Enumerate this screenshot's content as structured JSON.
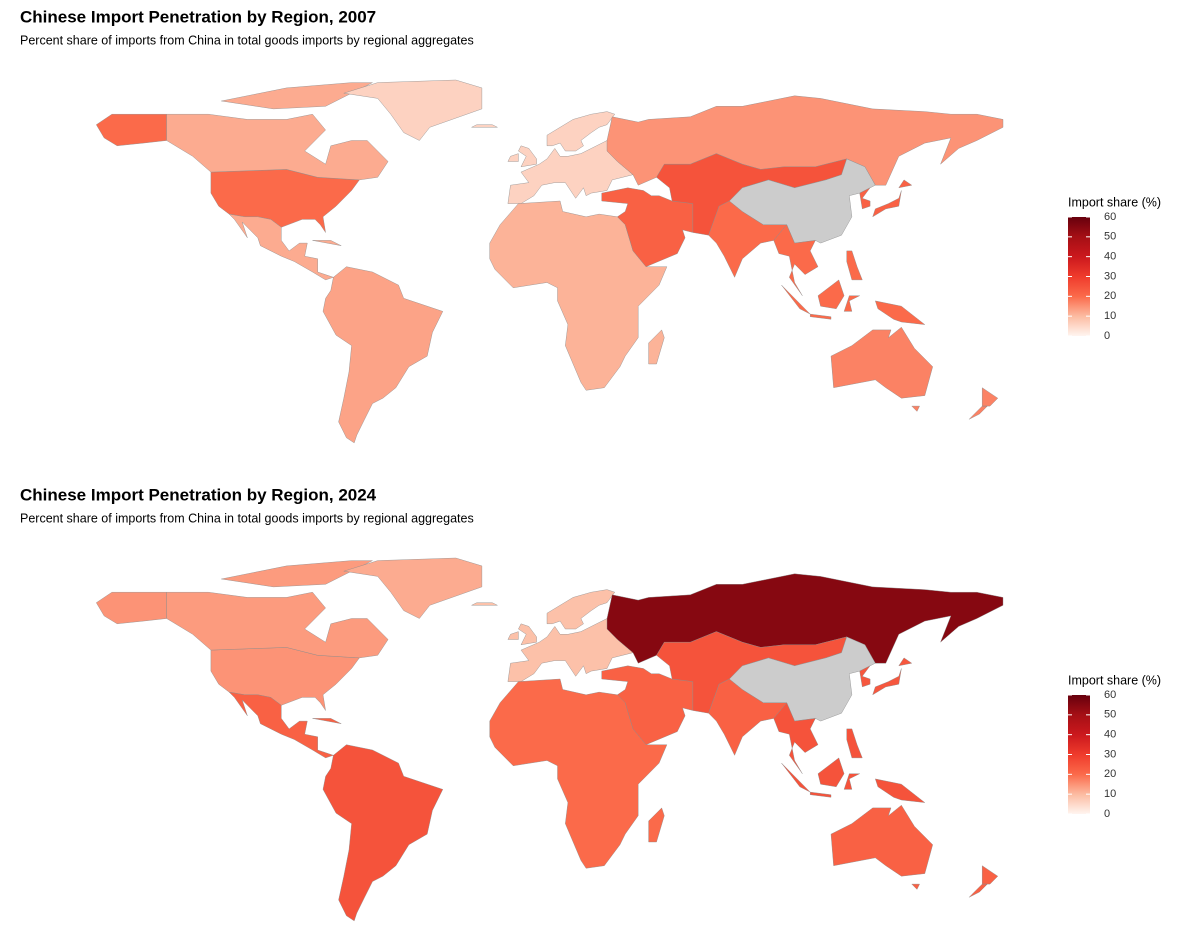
{
  "chart_data": [
    {
      "type": "map",
      "title": "Chinese Import Penetration by Region, 2007",
      "subtitle": "Percent share of imports from China in total goods imports by regional aggregates",
      "values": [
        20,
        12,
        6,
        12,
        13,
        6,
        11,
        15,
        22,
        25,
        20,
        null,
        20,
        22,
        17,
        17
      ],
      "legend_title": "Import share (%)",
      "clim": [
        0,
        60
      ],
      "cticks": [
        0,
        10,
        20,
        30,
        40,
        50,
        60
      ],
      "colorscale": [
        "#fff5f0",
        "#fcbba1",
        "#fb6a4a",
        "#ef3b2c",
        "#cb181d",
        "#a50f15",
        "#67000d"
      ],
      "na_color": "#cccccc"
    },
    {
      "type": "map",
      "title": "Chinese Import Penetration by Region, 2024",
      "subtitle": "Percent share of imports from China in total goods imports by regional aggregates",
      "values": [
        15,
        14,
        12,
        22,
        25,
        9,
        20,
        55,
        22,
        25,
        22,
        null,
        25,
        24,
        22,
        22
      ],
      "legend_title": "Import share (%)",
      "clim": [
        0,
        60
      ],
      "cticks": [
        0,
        10,
        20,
        30,
        40,
        50,
        60
      ],
      "colorscale": [
        "#fff5f0",
        "#fcbba1",
        "#fb6a4a",
        "#ef3b2c",
        "#cb181d",
        "#a50f15",
        "#67000d"
      ],
      "na_color": "#cccccc"
    }
  ]
}
